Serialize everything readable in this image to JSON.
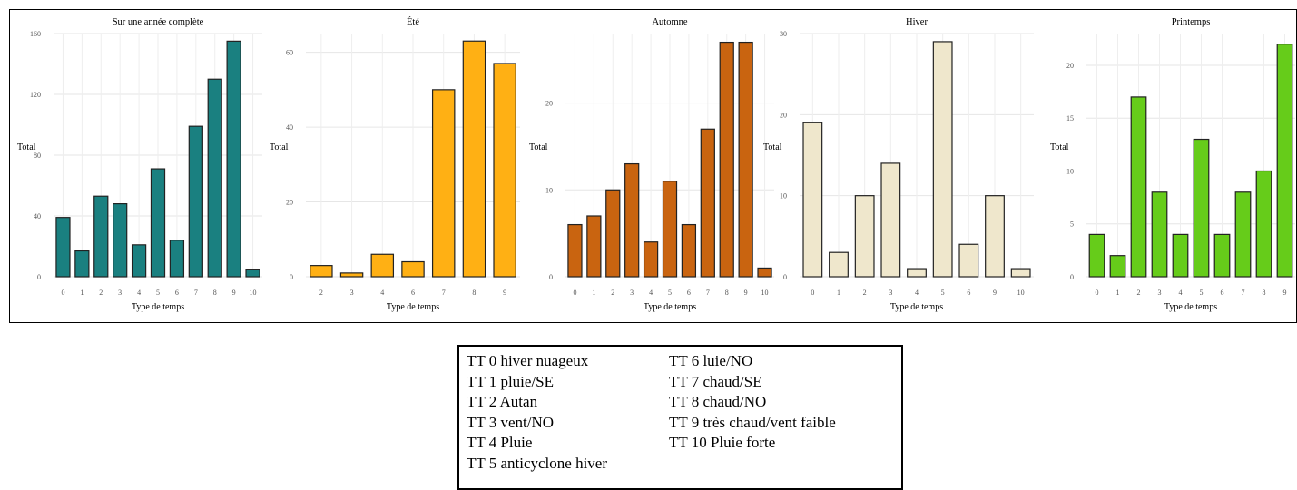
{
  "chart_data": [
    {
      "type": "bar",
      "title": "Sur une année complète",
      "xlabel": "Type de temps",
      "ylabel": "Total",
      "categories": [
        "0",
        "1",
        "2",
        "3",
        "4",
        "5",
        "6",
        "7",
        "8",
        "9",
        "10"
      ],
      "values": [
        39,
        17,
        53,
        48,
        21,
        71,
        24,
        99,
        130,
        155,
        5
      ],
      "ylim": [
        0,
        160
      ],
      "yticks": [
        0,
        40,
        80,
        120,
        160
      ],
      "color": "#1a8080",
      "grid": true
    },
    {
      "type": "bar",
      "title": "Été",
      "xlabel": "Type de temps",
      "ylabel": "Total",
      "categories": [
        "2",
        "3",
        "4",
        "6",
        "7",
        "8",
        "9"
      ],
      "values": [
        3,
        1,
        6,
        4,
        50,
        63,
        57
      ],
      "ylim": [
        0,
        65
      ],
      "yticks": [
        0,
        20,
        40,
        60
      ],
      "color": "#ffb014",
      "grid": true
    },
    {
      "type": "bar",
      "title": "Automne",
      "xlabel": "Type de temps",
      "ylabel": "Total",
      "categories": [
        "0",
        "1",
        "2",
        "3",
        "4",
        "5",
        "6",
        "7",
        "8",
        "9",
        "10"
      ],
      "values": [
        6,
        7,
        10,
        13,
        4,
        11,
        6,
        17,
        27,
        27,
        1
      ],
      "ylim": [
        0,
        28
      ],
      "yticks": [
        0,
        10,
        20
      ],
      "color": "#c96410",
      "grid": true
    },
    {
      "type": "bar",
      "title": "Hiver",
      "xlabel": "Type de temps",
      "ylabel": "Total",
      "categories": [
        "0",
        "1",
        "2",
        "3",
        "4",
        "5",
        "6",
        "9",
        "10"
      ],
      "values": [
        19,
        3,
        10,
        14,
        1,
        29,
        4,
        10,
        1
      ],
      "ylim": [
        0,
        30
      ],
      "yticks": [
        0,
        10,
        20,
        30
      ],
      "color": "#efe7cc",
      "grid": true
    },
    {
      "type": "bar",
      "title": "Printemps",
      "xlabel": "Type de temps",
      "ylabel": "Total",
      "categories": [
        "0",
        "1",
        "2",
        "3",
        "4",
        "5",
        "6",
        "7",
        "8",
        "9"
      ],
      "values": [
        4,
        2,
        17,
        8,
        4,
        13,
        4,
        8,
        10,
        22
      ],
      "ylim": [
        0,
        23
      ],
      "yticks": [
        0,
        5,
        10,
        15,
        20
      ],
      "color": "#66cc1a",
      "grid": true
    }
  ],
  "legend": {
    "left": [
      "TT 0 hiver nuageux",
      "TT 1 pluie/SE",
      "TT 2 Autan",
      "TT 3 vent/NO",
      "TT 4 Pluie",
      "TT 5 anticyclone hiver"
    ],
    "right": [
      "TT 6 luie/NO",
      "TT 7 chaud/SE",
      "TT 8 chaud/NO",
      "TT 9 très chaud/vent faible",
      "TT 10 Pluie forte"
    ]
  }
}
